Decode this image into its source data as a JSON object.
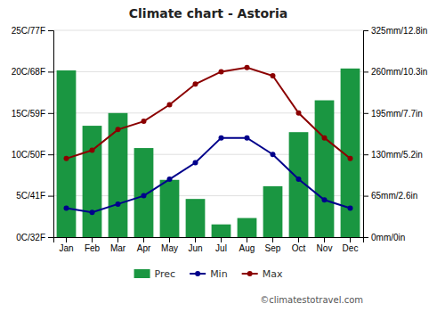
{
  "chart_data": {
    "type": "bar",
    "title": "Climate chart - Astoria",
    "categories": [
      "Jan",
      "Feb",
      "Mar",
      "Apr",
      "May",
      "Jun",
      "Jul",
      "Aug",
      "Sep",
      "Oct",
      "Nov",
      "Dec"
    ],
    "series": [
      {
        "name": "Prec",
        "type": "bar",
        "axis": "y2",
        "color": "#1a9641",
        "values": [
          262,
          175,
          195,
          140,
          90,
          60,
          20,
          30,
          80,
          165,
          215,
          265
        ]
      },
      {
        "name": "Min",
        "type": "line",
        "color": "#00008B",
        "marker": "circle",
        "values": [
          3.5,
          3.0,
          4.0,
          5.0,
          7.0,
          9.0,
          12.0,
          12.0,
          10.0,
          7.0,
          4.5,
          3.5
        ]
      },
      {
        "name": "Max",
        "type": "line",
        "color": "#8B0000",
        "marker": "circle",
        "values": [
          9.5,
          10.5,
          13.0,
          14.0,
          16.0,
          18.5,
          20.0,
          20.5,
          19.5,
          15.0,
          12.0,
          9.5
        ]
      }
    ],
    "ylim": [
      0,
      25
    ],
    "yticks": [
      {
        "value": 0,
        "label": "0C/32F"
      },
      {
        "value": 5,
        "label": "5C/41F"
      },
      {
        "value": 10,
        "label": "10C/50F"
      },
      {
        "value": 15,
        "label": "15C/59F"
      },
      {
        "value": 20,
        "label": "20C/68F"
      },
      {
        "value": 25,
        "label": "25C/77F"
      }
    ],
    "y2lim": [
      0,
      325
    ],
    "y2ticks": [
      {
        "value": 0,
        "label": "0mm/0in"
      },
      {
        "value": 65,
        "label": "65mm/2.6in"
      },
      {
        "value": 130,
        "label": "130mm/5.2in"
      },
      {
        "value": 195,
        "label": "195mm/7.7in"
      },
      {
        "value": 260,
        "label": "260mm/10.3in"
      },
      {
        "value": 325,
        "label": "325mm/12.8in"
      }
    ],
    "grid": true,
    "legend": "bottom",
    "annotations": [
      "©climatestotravel.com"
    ]
  }
}
